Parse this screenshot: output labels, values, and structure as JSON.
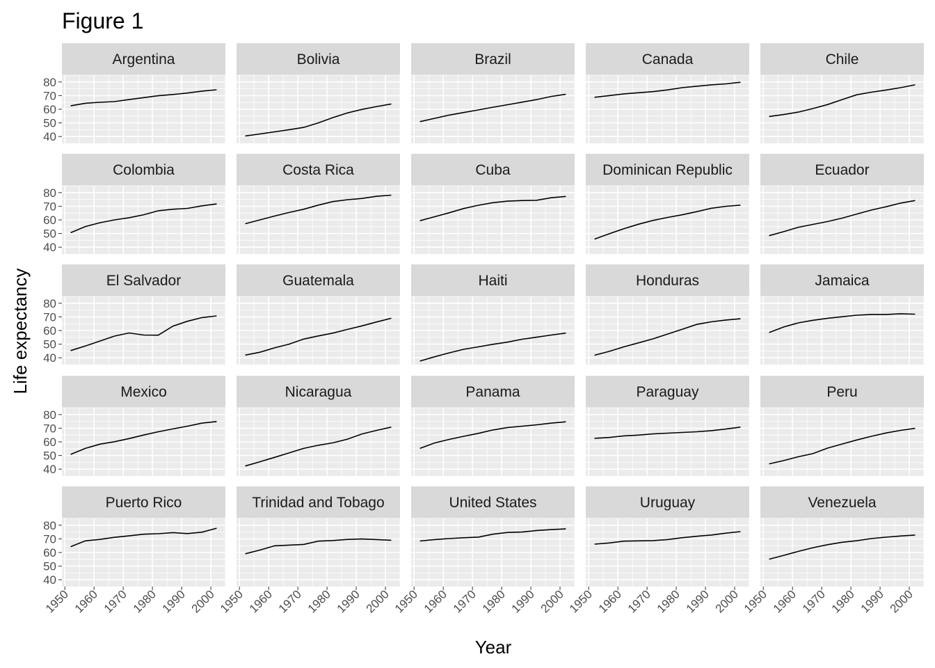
{
  "title": "Figure 1",
  "chart_data": {
    "type": "line",
    "layout": "facet-grid-5x5",
    "xlabel": "Year",
    "ylabel": "Life expectancy",
    "xlim": [
      1949,
      2005
    ],
    "ylim": [
      35,
      85
    ],
    "x_ticks": [
      1950,
      1960,
      1970,
      1980,
      1990,
      2000
    ],
    "y_ticks": [
      40,
      50,
      60,
      70,
      80
    ],
    "grid": true,
    "x": [
      1952,
      1957,
      1962,
      1967,
      1972,
      1977,
      1982,
      1987,
      1992,
      1997,
      2002
    ],
    "panels": [
      {
        "name": "Argentina",
        "values": [
          62.5,
          64.4,
          65.1,
          65.6,
          67.1,
          68.5,
          69.9,
          70.8,
          71.9,
          73.3,
          74.3
        ]
      },
      {
        "name": "Bolivia",
        "values": [
          40.4,
          41.9,
          43.4,
          45.0,
          46.7,
          50.0,
          53.9,
          57.3,
          59.9,
          62.0,
          63.9
        ]
      },
      {
        "name": "Brazil",
        "values": [
          50.9,
          53.3,
          55.7,
          57.6,
          59.5,
          61.5,
          63.3,
          65.2,
          67.1,
          69.4,
          71.0
        ]
      },
      {
        "name": "Canada",
        "values": [
          68.8,
          70.0,
          71.3,
          72.1,
          72.9,
          74.2,
          75.8,
          76.9,
          77.9,
          78.6,
          79.8
        ]
      },
      {
        "name": "Chile",
        "values": [
          54.7,
          56.1,
          57.9,
          60.5,
          63.4,
          67.1,
          70.6,
          72.5,
          74.1,
          75.8,
          77.9
        ]
      },
      {
        "name": "Colombia",
        "values": [
          50.6,
          55.1,
          57.9,
          60.0,
          61.6,
          63.8,
          66.7,
          67.8,
          68.4,
          70.3,
          71.7
        ]
      },
      {
        "name": "Costa Rica",
        "values": [
          57.2,
          60.0,
          62.8,
          65.4,
          67.8,
          70.8,
          73.4,
          74.8,
          75.7,
          77.3,
          78.1
        ]
      },
      {
        "name": "Cuba",
        "values": [
          59.4,
          62.3,
          65.2,
          68.3,
          70.7,
          72.6,
          73.7,
          74.2,
          74.4,
          76.2,
          77.2
        ]
      },
      {
        "name": "Dominican Republic",
        "values": [
          45.9,
          49.8,
          53.5,
          56.8,
          59.6,
          61.8,
          63.7,
          66.0,
          68.5,
          69.96,
          70.8
        ]
      },
      {
        "name": "Ecuador",
        "values": [
          48.4,
          51.4,
          54.6,
          56.7,
          58.8,
          61.3,
          64.3,
          67.2,
          69.6,
          72.3,
          74.2
        ]
      },
      {
        "name": "El Salvador",
        "values": [
          45.3,
          48.6,
          52.3,
          55.9,
          58.2,
          56.7,
          56.6,
          63.2,
          66.8,
          69.5,
          70.7
        ]
      },
      {
        "name": "Guatemala",
        "values": [
          42.0,
          44.1,
          47.3,
          50.0,
          53.7,
          56.0,
          58.1,
          60.8,
          63.4,
          66.3,
          68.98
        ]
      },
      {
        "name": "Haiti",
        "values": [
          37.6,
          40.7,
          43.6,
          46.2,
          48.0,
          49.9,
          51.5,
          53.6,
          55.1,
          56.7,
          58.1
        ]
      },
      {
        "name": "Honduras",
        "values": [
          41.9,
          44.7,
          48.0,
          50.9,
          53.9,
          57.4,
          60.9,
          64.5,
          66.4,
          67.7,
          68.6
        ]
      },
      {
        "name": "Jamaica",
        "values": [
          58.5,
          62.6,
          65.6,
          67.5,
          69.0,
          70.1,
          71.2,
          71.8,
          71.8,
          72.3,
          72.0
        ]
      },
      {
        "name": "Mexico",
        "values": [
          50.8,
          55.2,
          58.3,
          60.1,
          62.4,
          65.0,
          67.4,
          69.5,
          71.5,
          73.7,
          74.9
        ]
      },
      {
        "name": "Nicaragua",
        "values": [
          42.3,
          45.4,
          48.6,
          51.9,
          55.2,
          57.5,
          59.3,
          62.0,
          65.8,
          68.4,
          70.8
        ]
      },
      {
        "name": "Panama",
        "values": [
          55.2,
          59.2,
          61.8,
          64.1,
          66.2,
          68.7,
          70.5,
          71.5,
          72.5,
          73.7,
          74.7
        ]
      },
      {
        "name": "Paraguay",
        "values": [
          62.6,
          63.2,
          64.4,
          64.95,
          65.8,
          66.4,
          66.9,
          67.4,
          68.2,
          69.4,
          70.8
        ]
      },
      {
        "name": "Peru",
        "values": [
          43.9,
          46.3,
          49.1,
          51.4,
          55.4,
          58.4,
          61.4,
          64.1,
          66.5,
          68.4,
          69.9
        ]
      },
      {
        "name": "Puerto Rico",
        "values": [
          64.3,
          68.5,
          69.6,
          71.1,
          72.2,
          73.4,
          73.8,
          74.6,
          73.9,
          74.9,
          77.8
        ]
      },
      {
        "name": "Trinidad and Tobago",
        "values": [
          59.1,
          61.8,
          64.9,
          65.4,
          65.9,
          68.3,
          68.8,
          69.6,
          69.9,
          69.5,
          68.98
        ]
      },
      {
        "name": "United States",
        "values": [
          68.4,
          69.5,
          70.2,
          70.8,
          71.3,
          73.4,
          74.7,
          75.0,
          76.1,
          76.8,
          77.3
        ]
      },
      {
        "name": "Uruguay",
        "values": [
          66.1,
          67.0,
          68.3,
          68.5,
          68.7,
          69.5,
          70.8,
          71.9,
          72.8,
          74.2,
          75.3
        ]
      },
      {
        "name": "Venezuela",
        "values": [
          55.1,
          57.9,
          60.8,
          63.5,
          65.7,
          67.5,
          68.6,
          70.2,
          71.2,
          72.1,
          72.8
        ]
      }
    ]
  }
}
